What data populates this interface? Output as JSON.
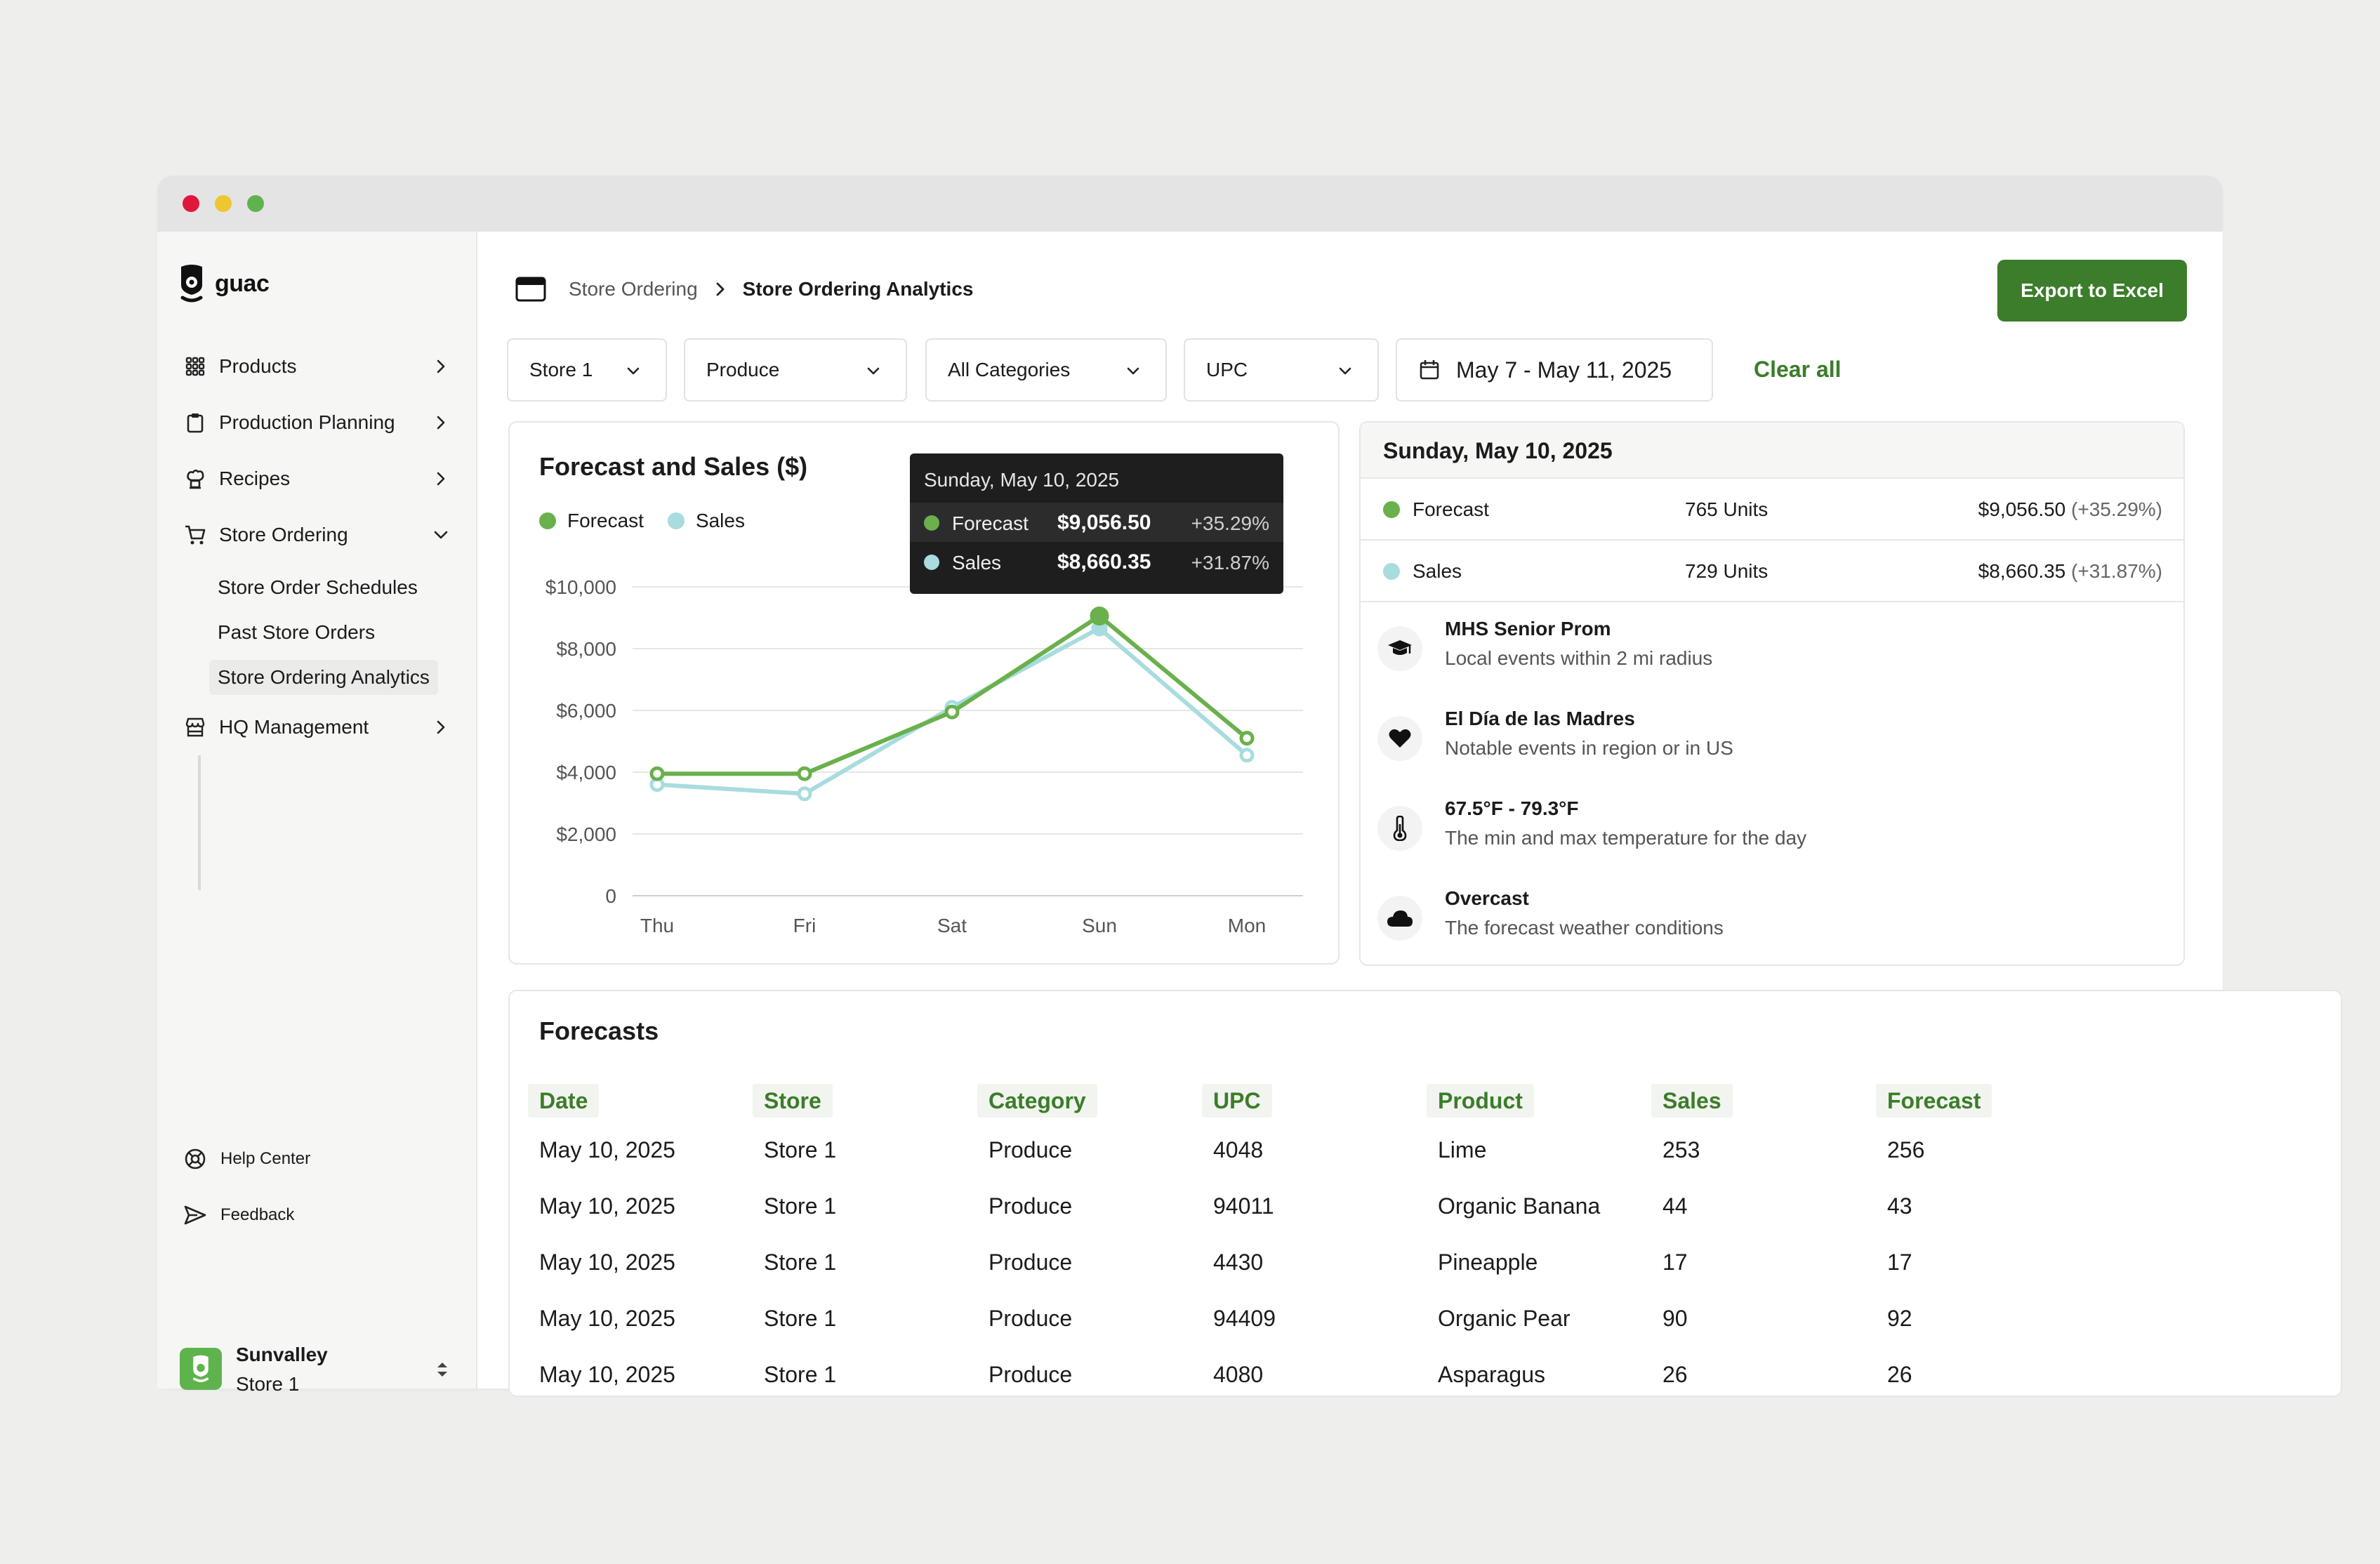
{
  "sidebar": {
    "logo_text": "guac",
    "nav": [
      {
        "label": "Products"
      },
      {
        "label": "Production Planning"
      },
      {
        "label": "Recipes"
      },
      {
        "label": "Store Ordering"
      },
      {
        "label": "HQ Management"
      }
    ],
    "sub_nav": [
      {
        "label": "Store Order Schedules"
      },
      {
        "label": "Past Store Orders"
      },
      {
        "label": "Store Ordering Analytics"
      }
    ],
    "footer": [
      {
        "label": "Help Center"
      },
      {
        "label": "Feedback"
      }
    ],
    "org": {
      "name": "Sunvalley",
      "store": "Store 1"
    }
  },
  "header": {
    "breadcrumb_parent": "Store Ordering",
    "breadcrumb_current": "Store Ordering Analytics",
    "export_label": "Export to Excel"
  },
  "filters": {
    "store": "Store 1",
    "category_group": "Produce",
    "category": "All Categories",
    "upc": "UPC",
    "date_range": "May 7 - May 11, 2025",
    "clear_label": "Clear all"
  },
  "chart_card": {
    "title": "Forecast and Sales ($)",
    "legend_forecast": "Forecast",
    "legend_sales": "Sales",
    "tooltip": {
      "title": "Sunday, May 10, 2025",
      "forecast_label": "Forecast",
      "forecast_value": "$9,056.50",
      "forecast_pct": "+35.29%",
      "sales_label": "Sales",
      "sales_value": "$8,660.35",
      "sales_pct": "+31.87%"
    }
  },
  "chart_data": {
    "type": "line",
    "x": [
      "Thu",
      "Fri",
      "Sat",
      "Sun",
      "Mon"
    ],
    "series": [
      {
        "name": "Forecast",
        "values": [
          3950,
          3950,
          5950,
          9056.5,
          5100
        ],
        "color": "#6ab04c"
      },
      {
        "name": "Sales",
        "values": [
          3600,
          3300,
          6100,
          8660.35,
          4550
        ],
        "color": "#a8dcdf"
      }
    ],
    "y_ticks": [
      "$10,000",
      "$8,000",
      "$6,000",
      "$4,000",
      "$2,000",
      "0"
    ],
    "ylim": [
      0,
      10000
    ],
    "grid": true,
    "legend": "top-left"
  },
  "details": {
    "date_title": "Sunday, May 10, 2025",
    "forecast": {
      "label": "Forecast",
      "units": "765 Units",
      "value": "$9,056.50",
      "pct": "(+35.29%)"
    },
    "sales": {
      "label": "Sales",
      "units": "729 Units",
      "value": "$8,660.35",
      "pct": "(+31.87%)"
    },
    "events": [
      {
        "title": "MHS Senior Prom",
        "sub": "Local events within 2 mi radius",
        "icon": "graduation-cap-icon"
      },
      {
        "title": "El Día de las Madres",
        "sub": "Notable events in region or in US",
        "icon": "heart-icon"
      },
      {
        "title": "67.5°F - 79.3°F",
        "sub": "The min and max temperature for the day",
        "icon": "thermometer-icon"
      },
      {
        "title": "Overcast",
        "sub": "The forecast weather conditions",
        "icon": "cloud-icon"
      }
    ]
  },
  "forecasts": {
    "title": "Forecasts",
    "columns": [
      "Date",
      "Store",
      "Category",
      "UPC",
      "Product",
      "Sales",
      "Forecast"
    ],
    "rows": [
      [
        "May 10, 2025",
        "Store 1",
        "Produce",
        "4048",
        "Lime",
        "253",
        "256"
      ],
      [
        "May 10, 2025",
        "Store 1",
        "Produce",
        "94011",
        "Organic Banana",
        "44",
        "43"
      ],
      [
        "May 10, 2025",
        "Store 1",
        "Produce",
        "4430",
        "Pineapple",
        "17",
        "17"
      ],
      [
        "May 10, 2025",
        "Store 1",
        "Produce",
        "94409",
        "Organic Pear",
        "90",
        "92"
      ],
      [
        "May 10, 2025",
        "Store 1",
        "Produce",
        "4080",
        "Asparagus",
        "26",
        "26"
      ]
    ]
  },
  "colors": {
    "accent": "#3b7d2a",
    "forecast": "#6ab04c",
    "sales": "#a8dcdf",
    "tooltip_bg": "#1e1e1e"
  }
}
